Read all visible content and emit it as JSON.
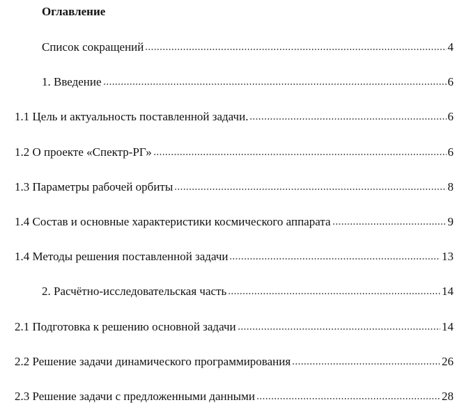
{
  "title": "Оглавление",
  "entries": [
    {
      "label": "Список сокращений",
      "page": "4",
      "level": 1
    },
    {
      "label": "1. Введение",
      "page": "6",
      "level": 1
    },
    {
      "label": "1.1 Цель и актуальность поставленной задачи.",
      "page": "6",
      "level": 2
    },
    {
      "label": "1.2 О проекте «Спектр-РГ»",
      "page": "6",
      "level": 2
    },
    {
      "label": "1.3 Параметры рабочей орбиты",
      "page": "8",
      "level": 2
    },
    {
      "label": "1.4 Состав и основные характеристики космического аппарата",
      "page": "9",
      "level": 2
    },
    {
      "label": "1.4 Методы решения поставленной задачи",
      "page": "13",
      "level": 2
    },
    {
      "label": "2. Расчётно-исследовательская часть",
      "page": "14",
      "level": 1
    },
    {
      "label": "2.1 Подготовка к решению основной задачи",
      "page": "14",
      "level": 2
    },
    {
      "label": "2.2 Решение задачи динамического программирования",
      "page": "26",
      "level": 2
    },
    {
      "label": "2.3 Решение задачи с предложенными данными",
      "page": "28",
      "level": 2
    }
  ]
}
